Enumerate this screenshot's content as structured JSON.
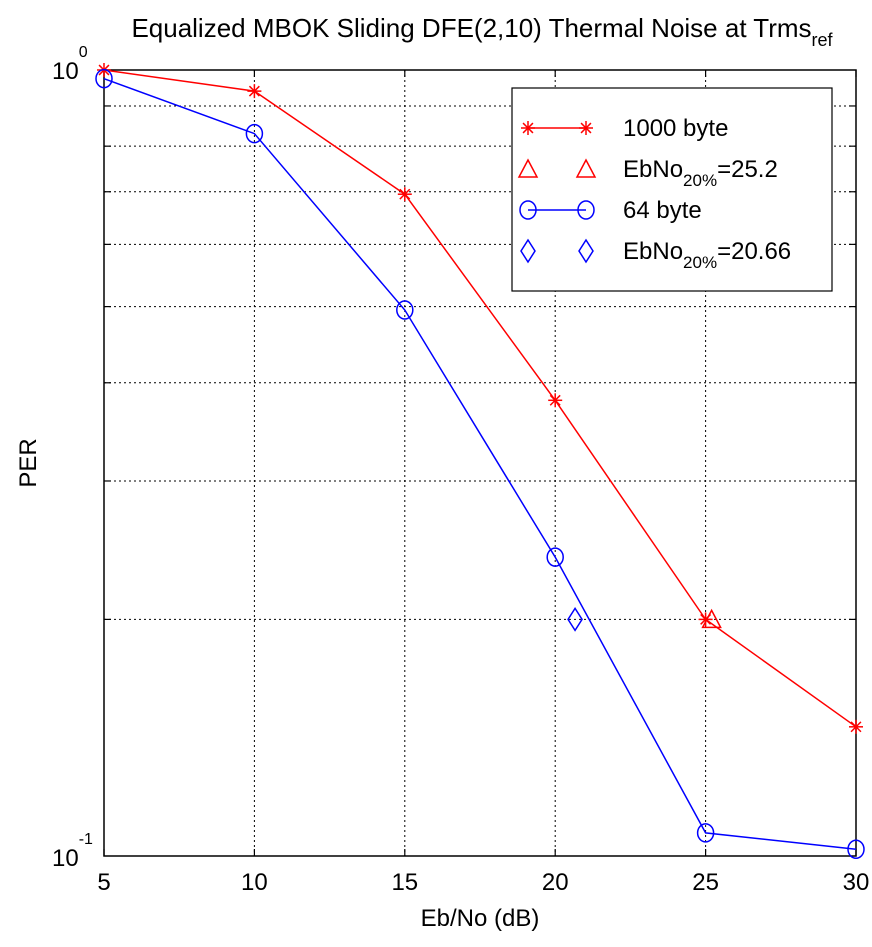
{
  "chart_data": {
    "type": "line",
    "title": {
      "main": "Equalized MBOK Sliding DFE(2,10) Thermal Noise at Trms",
      "sub": "ref"
    },
    "xlabel": "Eb/No (dB)",
    "ylabel": "PER",
    "xlim": [
      5,
      30
    ],
    "ylim": [
      0.1,
      1
    ],
    "yscale": "log",
    "grid": true,
    "xticks": [
      5,
      10,
      15,
      20,
      25,
      30
    ],
    "xtick_labels": [
      "5",
      "10",
      "15",
      "20",
      "25",
      "30"
    ],
    "ytick_labels": [
      {
        "value": 1,
        "base": "10",
        "exp": "0"
      },
      {
        "value": 0.1,
        "base": "10",
        "exp": "-1"
      }
    ],
    "legend_position": "top-right",
    "series": [
      {
        "name": "1000 byte",
        "color": "#ff0000",
        "marker": "asterisk",
        "line": true,
        "x": [
          5,
          10,
          15,
          20,
          25,
          30
        ],
        "y": [
          1.0,
          0.94,
          0.695,
          0.38,
          0.2,
          0.146
        ]
      },
      {
        "name_parts": {
          "base": "EbNo",
          "sub": "20%",
          "rest": "=25.2"
        },
        "color": "#ff0000",
        "marker": "triangle",
        "line": false,
        "x": [
          25.2
        ],
        "y": [
          0.2
        ]
      },
      {
        "name": "64 byte",
        "color": "#0000ff",
        "marker": "circle",
        "line": true,
        "x": [
          5,
          10,
          15,
          20,
          25,
          30
        ],
        "y": [
          0.975,
          0.83,
          0.495,
          0.24,
          0.107,
          0.102
        ]
      },
      {
        "name_parts": {
          "base": "EbNo",
          "sub": "20%",
          "rest": "=20.66"
        },
        "color": "#0000ff",
        "marker": "diamond",
        "line": false,
        "x": [
          20.66
        ],
        "y": [
          0.2
        ]
      }
    ]
  }
}
